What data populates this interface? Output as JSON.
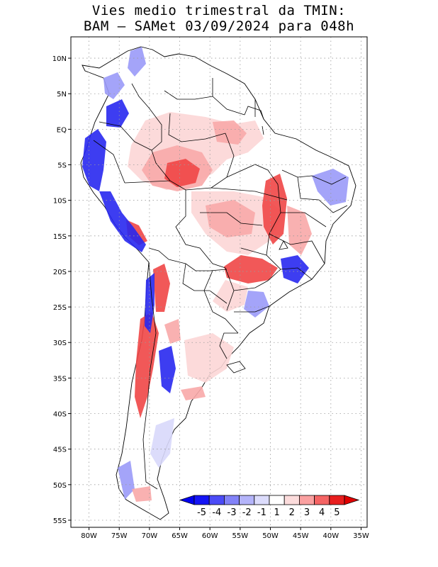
{
  "title_line1": "Vies medio trimestral da TMIN:",
  "title_line2": "BAM – SAMet 03/09/2024  para 048h",
  "map": {
    "lon_range": [
      -83,
      -34
    ],
    "lat_range": [
      -56,
      13
    ],
    "lon_ticks": [
      {
        "value": -80,
        "label": "80W"
      },
      {
        "value": -75,
        "label": "75W"
      },
      {
        "value": -70,
        "label": "70W"
      },
      {
        "value": -65,
        "label": "65W"
      },
      {
        "value": -60,
        "label": "60W"
      },
      {
        "value": -55,
        "label": "55W"
      },
      {
        "value": -50,
        "label": "50W"
      },
      {
        "value": -45,
        "label": "45W"
      },
      {
        "value": -40,
        "label": "40W"
      },
      {
        "value": -35,
        "label": "35W"
      }
    ],
    "lat_ticks": [
      {
        "value": 10,
        "label": "10N"
      },
      {
        "value": 5,
        "label": "5N"
      },
      {
        "value": 0,
        "label": "EQ"
      },
      {
        "value": -5,
        "label": "5S"
      },
      {
        "value": -10,
        "label": "10S"
      },
      {
        "value": -15,
        "label": "15S"
      },
      {
        "value": -20,
        "label": "20S"
      },
      {
        "value": -25,
        "label": "25S"
      },
      {
        "value": -30,
        "label": "30S"
      },
      {
        "value": -35,
        "label": "35S"
      },
      {
        "value": -40,
        "label": "40S"
      },
      {
        "value": -45,
        "label": "45S"
      },
      {
        "value": -50,
        "label": "50S"
      },
      {
        "value": -55,
        "label": "55S"
      }
    ],
    "grid": "dotted"
  },
  "colorbar": {
    "labels": [
      "-5",
      "-4",
      "-3",
      "-2",
      "-1",
      "1",
      "2",
      "3",
      "4",
      "5"
    ],
    "colors": [
      "#1414f5",
      "#4b4bf7",
      "#8282f8",
      "#b4b4fa",
      "#dcdcfc",
      "#ffffff",
      "#fcdcdc",
      "#faa0a0",
      "#f56464",
      "#e81e1e"
    ],
    "under_color": "#0000f0",
    "over_color": "#e00000"
  },
  "field_colors": {
    "strong_warm": "#f04646",
    "warm": "#f8a8a8",
    "light_warm": "#fcd6d6",
    "neutral": "#ffffff",
    "light_cool": "#d8d8fb",
    "cool": "#9a9af8",
    "strong_cool": "#2828f0"
  }
}
